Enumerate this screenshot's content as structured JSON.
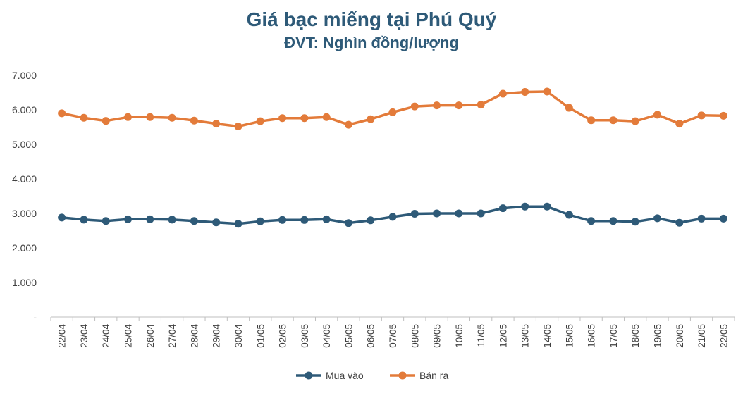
{
  "chart_data": {
    "type": "line",
    "title": "Giá bạc miếng tại Phú Quý",
    "subtitle": "ĐVT: Nghìn đồng/lượng",
    "categories": [
      "22/04",
      "23/04",
      "24/04",
      "25/04",
      "26/04",
      "27/04",
      "28/04",
      "29/04",
      "30/04",
      "01/05",
      "02/05",
      "03/05",
      "04/05",
      "05/05",
      "06/05",
      "07/05",
      "08/05",
      "09/05",
      "10/05",
      "11/05",
      "12/05",
      "13/05",
      "14/05",
      "15/05",
      "16/05",
      "17/05",
      "18/05",
      "19/05",
      "20/05",
      "21/05",
      "22/05"
    ],
    "y_ticks": [
      "-",
      "1.000",
      "2.000",
      "3.000",
      "4.000",
      "5.000",
      "6.000",
      "7.000"
    ],
    "ylim": [
      0,
      7000
    ],
    "grid": false,
    "legend_position": "bottom",
    "series": [
      {
        "name": "Mua vào",
        "color": "#2e5a78",
        "values": [
          2880,
          2820,
          2780,
          2830,
          2830,
          2820,
          2780,
          2740,
          2700,
          2770,
          2810,
          2810,
          2830,
          2720,
          2800,
          2900,
          2990,
          3000,
          3000,
          3000,
          3150,
          3200,
          3200,
          2960,
          2780,
          2780,
          2760,
          2860,
          2730,
          2850,
          2850
        ]
      },
      {
        "name": "Bán ra",
        "color": "#e37b3a",
        "values": [
          5900,
          5770,
          5680,
          5790,
          5790,
          5770,
          5690,
          5600,
          5520,
          5670,
          5760,
          5760,
          5790,
          5570,
          5730,
          5930,
          6100,
          6130,
          6130,
          6150,
          6470,
          6520,
          6530,
          6060,
          5700,
          5700,
          5670,
          5860,
          5600,
          5840,
          5830
        ]
      }
    ]
  }
}
